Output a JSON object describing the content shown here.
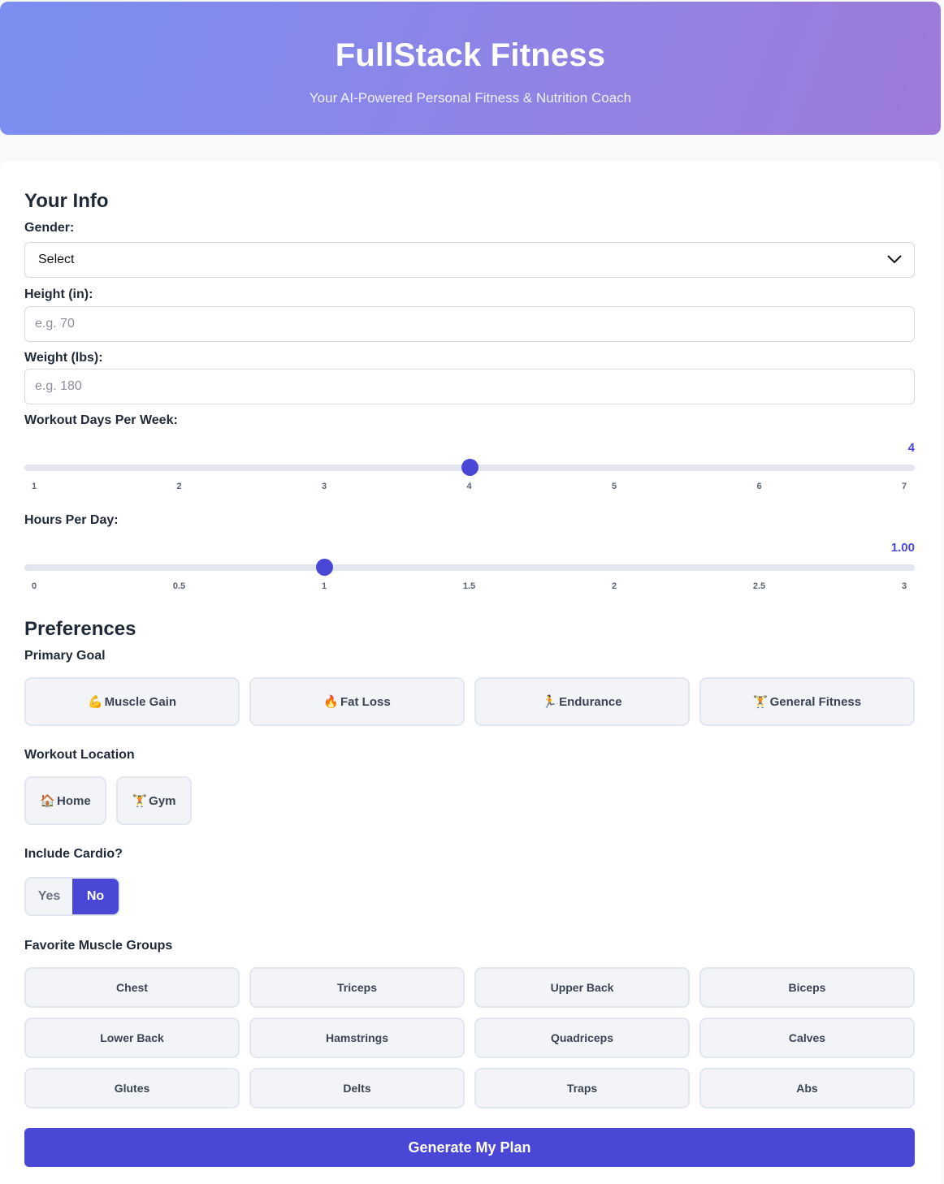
{
  "header": {
    "title": "FullStack Fitness",
    "subtitle": "Your AI-Powered Personal Fitness & Nutrition Coach"
  },
  "info": {
    "title": "Your Info",
    "gender": {
      "label": "Gender:",
      "value": "Select"
    },
    "height": {
      "label": "Height (in):",
      "placeholder": "e.g. 70"
    },
    "weight": {
      "label": "Weight (lbs):",
      "placeholder": "e.g. 180"
    },
    "days": {
      "label": "Workout Days Per Week:",
      "value": "4",
      "fraction": 0.5,
      "ticks": [
        "1",
        "2",
        "3",
        "4",
        "5",
        "6",
        "7"
      ]
    },
    "hours": {
      "label": "Hours Per Day:",
      "value": "1.00",
      "fraction": 0.3333,
      "ticks": [
        "0",
        "0.5",
        "1",
        "1.5",
        "2",
        "2.5",
        "3"
      ]
    }
  },
  "preferences": {
    "title": "Preferences",
    "goal_label": "Primary Goal",
    "goals": [
      {
        "icon": "💪",
        "icon_name": "flexed-biceps-icon",
        "label": "Muscle Gain"
      },
      {
        "icon": "🔥",
        "icon_name": "fire-icon",
        "label": "Fat Loss"
      },
      {
        "icon": "🏃",
        "icon_name": "runner-icon",
        "label": "Endurance"
      },
      {
        "icon": "🏋",
        "icon_name": "weightlifter-icon",
        "label": "General Fitness"
      }
    ],
    "location_label": "Workout Location",
    "locations": [
      {
        "icon": "🏠",
        "icon_name": "house-icon",
        "label": "Home"
      },
      {
        "icon": "🏋",
        "icon_name": "weightlifter-icon",
        "label": "Gym"
      }
    ],
    "cardio_label": "Include Cardio?",
    "cardio": {
      "yes": "Yes",
      "no": "No",
      "selected": "No"
    },
    "muscle_label": "Favorite Muscle Groups",
    "muscles": [
      "Chest",
      "Triceps",
      "Upper Back",
      "Biceps",
      "Lower Back",
      "Hamstrings",
      "Quadriceps",
      "Calves",
      "Glutes",
      "Delts",
      "Traps",
      "Abs"
    ]
  },
  "generate_label": "Generate My Plan",
  "colors": {
    "accent": "#4a47d6",
    "header_start": "#7a8ff0",
    "header_end": "#9d7ad9"
  }
}
